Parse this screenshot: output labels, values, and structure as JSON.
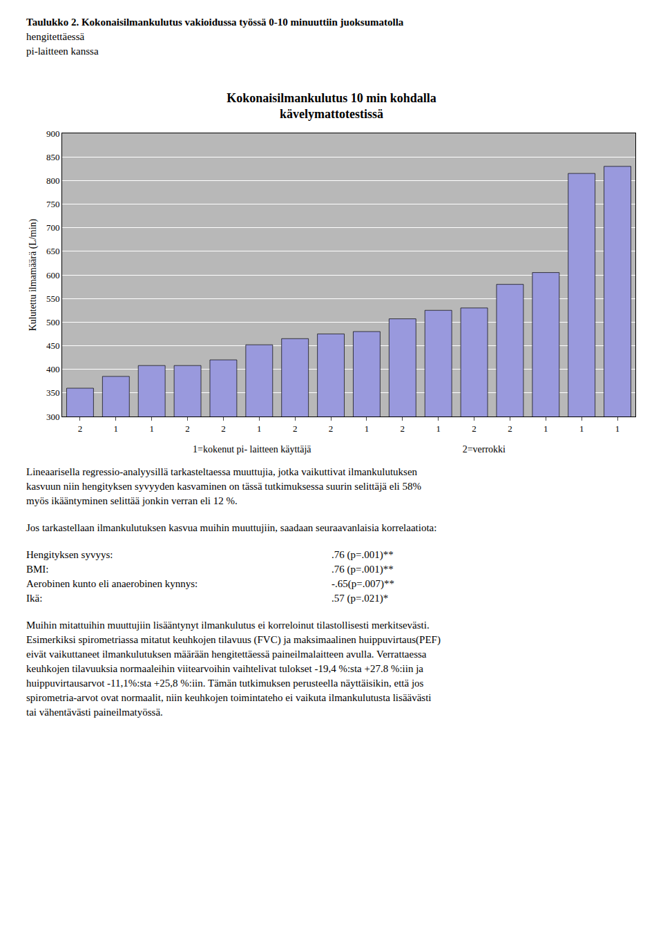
{
  "chart_data": {
    "type": "bar",
    "title": "Kokonaisilmankulutus 10 min kohdalla\nkävelymattotestissä",
    "ylabel": "Kulutettu ilmamäärä (L/min)",
    "categories": [
      "2",
      "1",
      "1",
      "2",
      "2",
      "1",
      "2",
      "2",
      "1",
      "2",
      "1",
      "2",
      "2",
      "1",
      "1",
      "1"
    ],
    "values": [
      360,
      385,
      408,
      408,
      420,
      452,
      465,
      475,
      480,
      507,
      525,
      530,
      580,
      605,
      815,
      830
    ],
    "color": "#9999dd",
    "ylim": [
      300,
      900
    ],
    "yticks": [
      300,
      350,
      400,
      450,
      500,
      550,
      600,
      650,
      700,
      750,
      800,
      850,
      900
    ],
    "grid": true,
    "annotations": [
      [
        "Taulukko 2.  Kokonaisilmankulutus vakioidussa työssä 0-10 minuuttiin juoksumatolla",
        "hengitettäessä",
        "pi-laitteen kanssa"
      ],
      [
        [
          "1=kokenut pi- laitteen käyttäjä",
          "2=verrokki"
        ]
      ],
      [
        "Lineaarisella regressio-analyysillä tarkasteltaessa muuttujia, jotka vaikuttivat ilmankulutuksen",
        "kasvuun niin hengityksen syvyyden kasvaminen on tässä tutkimuksessa suurin selittäjä eli 58%",
        "myös ikääntyminen selittää jonkin verran eli 12 %."
      ],
      [
        "Jos tarkastellaan ilmankulutuksen kasvua muihin muuttujiin, saadaan seuraavanlaisia korrelaatiota:"
      ],
      [
        [
          "Hengityksen syvyys:",
          ".76 (p=.001)**"
        ],
        [
          "BMI:",
          ".76 (p=.001)**"
        ],
        [
          "Aerobinen kunto eli anaerobinen kynnys:",
          "-.65(p=.007)**"
        ],
        [
          "Ikä:",
          ".57 (p=.021)*"
        ]
      ],
      [
        "Muihin mitattuihin muuttujiin lisääntynyt ilmankulutus ei korreloinut tilastollisesti merkitsevästi.",
        "Esimerkiksi spirometriassa mitatut keuhkojen tilavuus (FVC) ja maksimaalinen huippuvirtaus(PEF)",
        "eivät vaikuttaneet ilmankulutuksen määrään hengitettäessä paineilmalaitteen avulla. Verrattaessa",
        "keuhkojen tilavuuksia normaaleihin viitearvoihin vaihtelivat tulokset -19,4 %:sta +27.8 %:iin ja",
        "huippuvirtausarvot  -11,1%:sta +25,8 %:iin. Tämän tutkimuksen perusteella näyttäisikin, että jos",
        "spirometria-arvot ovat normaalit, niin keuhkojen toimintateho ei vaikuta ilmankulutusta lisäävästi",
        "tai vähentävästi paineilmatyössä."
      ]
    ]
  }
}
